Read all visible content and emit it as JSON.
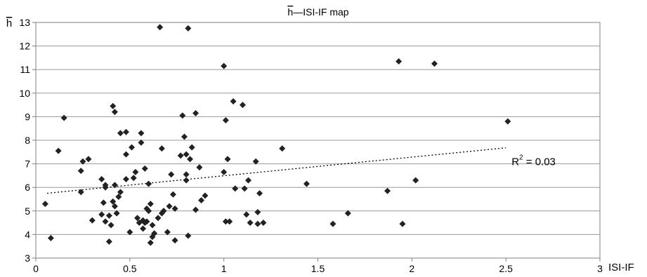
{
  "chart_data": {
    "type": "scatter",
    "title": "h—ISI-IF map",
    "title_overline_char": "h",
    "xlabel": "ISI-IF",
    "ylabel": "h",
    "ylabel_overline": true,
    "xlim": [
      0,
      3
    ],
    "ylim": [
      3,
      13
    ],
    "x_ticks": [
      0,
      0.5,
      1,
      1.5,
      2,
      2.5,
      3
    ],
    "x_tick_labels": [
      "0",
      "0.5",
      "1",
      "1.5",
      "2",
      "2.5",
      "3"
    ],
    "y_ticks": [
      3,
      4,
      5,
      6,
      7,
      8,
      9,
      10,
      11,
      12,
      13
    ],
    "y_tick_labels": [
      "3",
      "4",
      "5",
      "6",
      "7",
      "8",
      "9",
      "10",
      "11",
      "12",
      "13"
    ],
    "grid": "horizontal",
    "legend": "none",
    "marker": "diamond",
    "marker_color": "#222222",
    "trendline": {
      "type": "linear",
      "x_start": 0.06,
      "y_start": 5.75,
      "x_end": 2.5,
      "y_end": 7.68,
      "style": "dotted"
    },
    "annotation": {
      "base": "R",
      "sup": "2",
      "rest": " = 0.03",
      "x": 2.53,
      "y": 6.95
    },
    "points": [
      [
        0.05,
        5.3
      ],
      [
        0.08,
        3.85
      ],
      [
        0.12,
        7.55
      ],
      [
        0.15,
        8.95
      ],
      [
        0.24,
        5.8
      ],
      [
        0.24,
        6.7
      ],
      [
        0.25,
        7.1
      ],
      [
        0.28,
        7.2
      ],
      [
        0.3,
        4.6
      ],
      [
        0.35,
        6.35
      ],
      [
        0.35,
        4.85
      ],
      [
        0.36,
        5.35
      ],
      [
        0.37,
        6.0
      ],
      [
        0.37,
        6.1
      ],
      [
        0.37,
        4.55
      ],
      [
        0.39,
        3.7
      ],
      [
        0.39,
        4.8
      ],
      [
        0.4,
        4.4
      ],
      [
        0.41,
        9.45
      ],
      [
        0.41,
        5.4
      ],
      [
        0.42,
        9.2
      ],
      [
        0.42,
        6.1
      ],
      [
        0.42,
        5.2
      ],
      [
        0.43,
        4.9
      ],
      [
        0.44,
        5.6
      ],
      [
        0.45,
        5.8
      ],
      [
        0.45,
        8.3
      ],
      [
        0.48,
        6.35
      ],
      [
        0.48,
        8.35
      ],
      [
        0.48,
        7.4
      ],
      [
        0.5,
        4.1
      ],
      [
        0.51,
        7.7
      ],
      [
        0.52,
        6.4
      ],
      [
        0.53,
        6.65
      ],
      [
        0.54,
        4.7
      ],
      [
        0.55,
        4.5
      ],
      [
        0.56,
        7.9
      ],
      [
        0.56,
        8.3
      ],
      [
        0.57,
        4.25
      ],
      [
        0.57,
        4.6
      ],
      [
        0.58,
        6.8
      ],
      [
        0.58,
        4.5
      ],
      [
        0.59,
        4.55
      ],
      [
        0.59,
        5.1
      ],
      [
        0.6,
        6.15
      ],
      [
        0.6,
        5.0
      ],
      [
        0.61,
        3.65
      ],
      [
        0.61,
        5.3
      ],
      [
        0.62,
        3.9
      ],
      [
        0.62,
        4.4
      ],
      [
        0.63,
        4.05
      ],
      [
        0.65,
        4.7
      ],
      [
        0.66,
        12.8
      ],
      [
        0.67,
        7.65
      ],
      [
        0.67,
        4.9
      ],
      [
        0.68,
        5.0
      ],
      [
        0.7,
        4.1
      ],
      [
        0.71,
        5.2
      ],
      [
        0.72,
        6.55
      ],
      [
        0.73,
        5.7
      ],
      [
        0.74,
        3.75
      ],
      [
        0.74,
        5.1
      ],
      [
        0.77,
        7.35
      ],
      [
        0.78,
        9.05
      ],
      [
        0.79,
        8.15
      ],
      [
        0.8,
        6.55
      ],
      [
        0.8,
        6.3
      ],
      [
        0.8,
        7.4
      ],
      [
        0.81,
        12.75
      ],
      [
        0.81,
        3.95
      ],
      [
        0.82,
        7.2
      ],
      [
        0.83,
        7.7
      ],
      [
        0.85,
        5.05
      ],
      [
        0.85,
        9.15
      ],
      [
        0.87,
        6.85
      ],
      [
        0.88,
        5.45
      ],
      [
        0.9,
        5.65
      ],
      [
        1.0,
        11.15
      ],
      [
        1.0,
        6.65
      ],
      [
        1.01,
        8.85
      ],
      [
        1.01,
        4.55
      ],
      [
        1.02,
        7.2
      ],
      [
        1.03,
        4.55
      ],
      [
        1.05,
        9.65
      ],
      [
        1.06,
        5.95
      ],
      [
        1.1,
        9.5
      ],
      [
        1.11,
        5.95
      ],
      [
        1.12,
        4.85
      ],
      [
        1.13,
        6.3
      ],
      [
        1.14,
        4.5
      ],
      [
        1.17,
        7.1
      ],
      [
        1.18,
        4.45
      ],
      [
        1.18,
        4.95
      ],
      [
        1.19,
        5.75
      ],
      [
        1.21,
        4.5
      ],
      [
        1.31,
        7.65
      ],
      [
        1.44,
        6.15
      ],
      [
        1.58,
        4.45
      ],
      [
        1.66,
        4.9
      ],
      [
        1.87,
        5.85
      ],
      [
        1.93,
        11.35
      ],
      [
        1.95,
        4.45
      ],
      [
        2.02,
        6.3
      ],
      [
        2.12,
        11.25
      ],
      [
        2.51,
        8.8
      ]
    ]
  }
}
